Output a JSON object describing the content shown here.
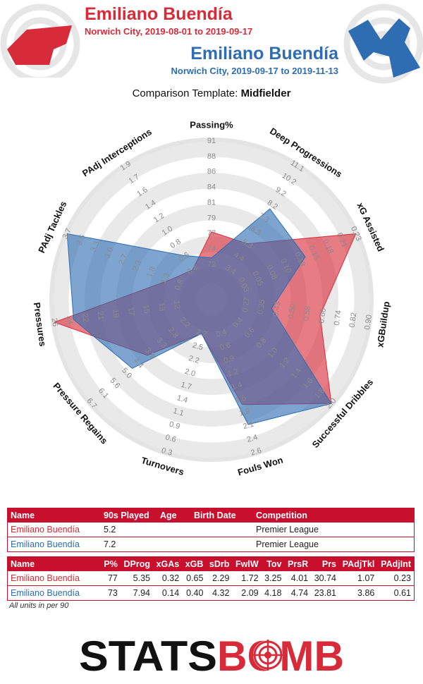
{
  "header": {
    "player_a_name": "Emiliano Buendía",
    "player_a_sub": "Norwich City, 2019-08-01 to 2019-09-17",
    "player_b_name": "Emiliano Buendía",
    "player_b_sub": "Norwich City, 2019-09-17 to 2019-11-13",
    "template_prefix": "Comparison Template: ",
    "template_name": "Midfielder"
  },
  "colors": {
    "red": "#d82b39",
    "blue": "#2f6db3",
    "table_header": "#c8102e"
  },
  "chart_data": {
    "type": "radar",
    "axes": [
      {
        "label": "Passing%",
        "ticks": [
          "72",
          "74",
          "77",
          "79",
          "81",
          "84",
          "86",
          "88",
          "91"
        ]
      },
      {
        "label": "Deep Progressions",
        "ticks": [
          "3.4",
          "4.4",
          "5.3",
          "6.3",
          "7.3",
          "8.2",
          "9.2",
          "10.2",
          "11.1"
        ]
      },
      {
        "label": "xG Assisted",
        "ticks": [
          "0.03",
          "0.05",
          "0.08",
          "0.10",
          "0.13",
          "0.15",
          "0.18",
          "0.21",
          "0.23"
        ]
      },
      {
        "label": "xGBuildup",
        "ticks": [
          "0.27",
          "0.35",
          "0.43",
          "0.50",
          "0.58",
          "0.66",
          "0.74",
          "0.82",
          "0.90"
        ]
      },
      {
        "label": "Successful Dribbles",
        "ticks": [
          "0.4",
          "0.6",
          "0.8",
          "1.0",
          "1.2",
          "1.4",
          "1.6",
          "1.8",
          "2.0"
        ]
      },
      {
        "label": "Fouls Won",
        "ticks": [
          "0.4",
          "0.6",
          "0.9",
          "1.2",
          "1.4",
          "1.6",
          "1.9",
          "2.1",
          "2.4",
          "2.6"
        ]
      },
      {
        "label": "Turnovers",
        "ticks": [
          "2.7",
          "2.5",
          "2.2",
          "2.0",
          "1.7",
          "1.4",
          "1.1",
          "0.9",
          "0.6",
          "0.3"
        ]
      },
      {
        "label": "Pressure Regains",
        "ticks": [
          "2.2",
          "2.8",
          "3.3",
          "3.9",
          "4.4",
          "5.0",
          "5.6",
          "6.1",
          "6.7"
        ]
      },
      {
        "label": "Pressures",
        "ticks": [
          "12",
          "13",
          "15",
          "17",
          "19",
          "21",
          "22",
          "24",
          "26"
        ]
      },
      {
        "label": "PAdj Tackles",
        "ticks": [
          "0.8",
          "1.3",
          "1.8",
          "2.3",
          "2.7",
          "3.0",
          "3.3",
          "3.5",
          "3.7"
        ]
      },
      {
        "label": "PAdj Interceptions",
        "ticks": [
          "0.4",
          "0.6",
          "0.8",
          "1.0",
          "1.2",
          "1.4",
          "1.6",
          "1.7",
          "1.9"
        ]
      }
    ],
    "series": [
      {
        "name": "Emiliano Buendía",
        "color": "#d82b39",
        "values": [
          77,
          5.35,
          0.32,
          0.65,
          2.29,
          1.72,
          3.25,
          4.01,
          30.74,
          1.07,
          0.23
        ]
      },
      {
        "name": "Emiliano Buendía",
        "color": "#2f6db3",
        "values": [
          73,
          7.94,
          0.14,
          0.4,
          4.32,
          2.09,
          4.18,
          4.74,
          23.81,
          3.86,
          0.61
        ]
      }
    ]
  },
  "table1": {
    "headers": [
      "Name",
      "90s Played",
      "Age",
      "Birth Date",
      "Competition"
    ],
    "rows": [
      [
        "Emiliano Buendía",
        "5.2",
        "",
        "",
        "Premier League"
      ],
      [
        "Emiliano Buendía",
        "7.2",
        "",
        "",
        "Premier League"
      ]
    ]
  },
  "table2": {
    "headers": [
      "Name",
      "P%",
      "DProg",
      "xGAs",
      "xGB",
      "sDrb",
      "FwlW",
      "Tov",
      "PrsR",
      "Prs",
      "PAdjTkl",
      "PAdjInt"
    ],
    "rows": [
      [
        "Emiliano Buendía",
        "77",
        "5.35",
        "0.32",
        "0.65",
        "2.29",
        "1.72",
        "3.25",
        "4.01",
        "30.74",
        "1.07",
        "0.23"
      ],
      [
        "Emiliano Buendía",
        "73",
        "7.94",
        "0.14",
        "0.40",
        "4.32",
        "2.09",
        "4.18",
        "4.74",
        "23.81",
        "3.86",
        "0.61"
      ]
    ]
  },
  "footnote": "All units in per 90",
  "logo_text": {
    "left": "STATS",
    "right": "BOMB"
  }
}
